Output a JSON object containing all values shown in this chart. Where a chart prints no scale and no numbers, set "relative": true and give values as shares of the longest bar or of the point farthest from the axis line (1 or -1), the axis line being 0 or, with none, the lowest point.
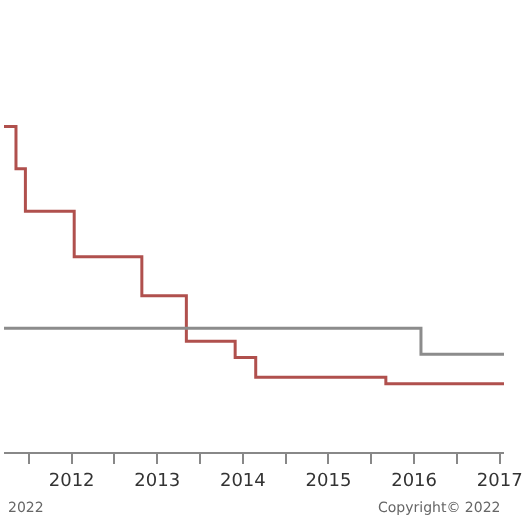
{
  "chart_data": {
    "type": "step",
    "relative": true,
    "grid": false,
    "marker": "none",
    "line_style": "solid",
    "xlim": [
      2011.71,
      2017.55
    ],
    "xticks": [
      {
        "value": 2012,
        "label": null
      },
      {
        "value": 2012.5,
        "label": "2012"
      },
      {
        "value": 2013,
        "label": null
      },
      {
        "value": 2013.5,
        "label": "2013"
      },
      {
        "value": 2014,
        "label": null
      },
      {
        "value": 2014.5,
        "label": "2014"
      },
      {
        "value": 2015,
        "label": null
      },
      {
        "value": 2015.5,
        "label": "2015"
      },
      {
        "value": 2016,
        "label": null
      },
      {
        "value": 2016.5,
        "label": "2016"
      },
      {
        "value": 2017,
        "label": null
      },
      {
        "value": 2017.5,
        "label": "2017"
      }
    ],
    "series": [
      {
        "color": "#b0504d",
        "x": [
          2011.71,
          2011.85,
          2011.96,
          2012.53,
          2013.32,
          2013.84,
          2014.41,
          2014.65,
          2016.17,
          2017.55
        ],
        "values": [
          1,
          0.87,
          0.74,
          0.6,
          0.48,
          0.34,
          0.29,
          0.23,
          0.21,
          0.21
        ]
      },
      {
        "color": "#8c8c8c",
        "x": [
          2011.71,
          2016.58,
          2017.55
        ],
        "values": [
          0.38,
          0.3,
          0.3
        ]
      }
    ],
    "annotations": [
      "2022",
      "Copyright© 2022"
    ]
  }
}
